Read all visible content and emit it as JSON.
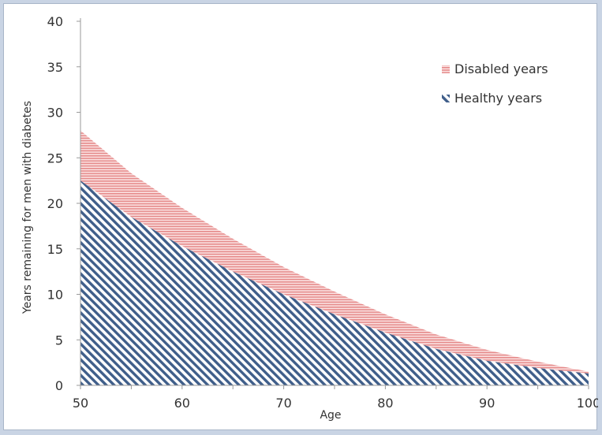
{
  "chart_data": {
    "type": "area",
    "stacked": true,
    "x": [
      50,
      55,
      60,
      65,
      70,
      75,
      80,
      85,
      90,
      95,
      100
    ],
    "series": [
      {
        "name": "Healthy years",
        "values": [
          22.5,
          18.5,
          15.3,
          12.5,
          10.0,
          7.8,
          5.8,
          4.0,
          2.7,
          1.9,
          1.3
        ],
        "color": "#3f5e8a",
        "pattern": "diagonal-hatch"
      },
      {
        "name": "Disabled years",
        "values": [
          5.5,
          4.8,
          4.2,
          3.6,
          3.0,
          2.5,
          2.0,
          1.6,
          1.2,
          0.7,
          0.2
        ],
        "color": "#e58a8a",
        "pattern": "horizontal-hatch"
      }
    ],
    "xlabel": "Age",
    "ylabel": "Years remaining for men with diabetes",
    "xlim": [
      50,
      100
    ],
    "ylim": [
      0,
      40
    ],
    "xticks": [
      "50",
      "60",
      "70",
      "80",
      "90",
      "100"
    ],
    "yticks": [
      "0",
      "5",
      "10",
      "15",
      "20",
      "25",
      "30",
      "35",
      "40"
    ],
    "grid": false,
    "legend": "top-right"
  },
  "legend": {
    "disabled_label": "Disabled years",
    "healthy_label": "Healthy years"
  }
}
